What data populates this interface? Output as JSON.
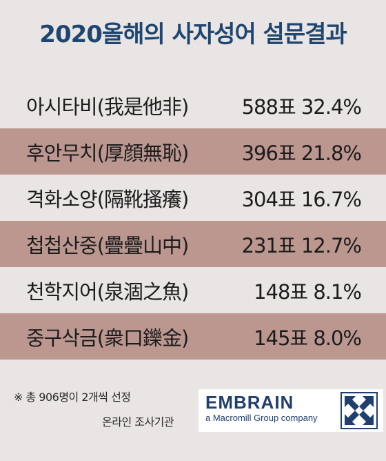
{
  "title": "2020올해의 사자성어 설문결과",
  "results": [
    {
      "phrase": "아시타비(我是他非)",
      "stat": "588표 32.4%"
    },
    {
      "phrase": "후안무치(厚顔無恥)",
      "stat": "396표 21.8%"
    },
    {
      "phrase": "격화소양(隔靴搔癢)",
      "stat": "304표 16.7%"
    },
    {
      "phrase": "첩첩산중(疊疊山中)",
      "stat": "231표 12.7%"
    },
    {
      "phrase": "천학지어(泉涸之魚)",
      "stat": "148표 8.1%"
    },
    {
      "phrase": "중구삭금(衆口鑠金)",
      "stat": "145표 8.0%"
    }
  ],
  "note": "※ 총 906명이 2개씩 선정",
  "source_label": "온라인 조사기관",
  "logo": {
    "name": "EMBRAIN",
    "tagline": "a Macromill Group company",
    "icon": "embrain-arrows-icon",
    "color": "#1f3f6e"
  },
  "colors": {
    "title": "#1f4670",
    "shaded_row": "#bb9790",
    "background": "#e8e5e4"
  }
}
